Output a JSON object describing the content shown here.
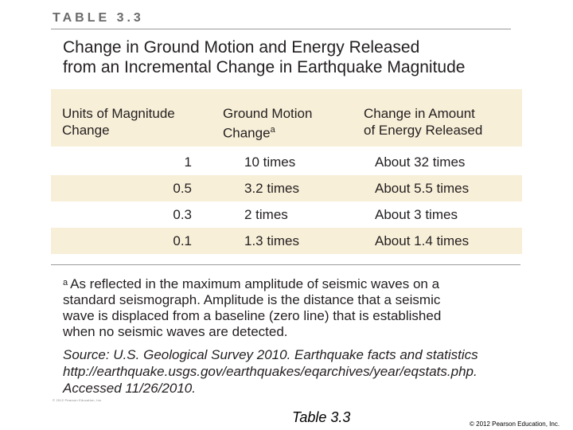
{
  "table_label": "TABLE 3.3",
  "title_line1": "Change in Ground Motion and Energy Released",
  "title_line2": "from an Incremental Change in Earthquake Magnitude",
  "headers": {
    "col1_line1": "Units of Magnitude",
    "col1_line2": "Change",
    "col2_line1": "Ground Motion",
    "col2_line2": "Change",
    "col2_sup": "a",
    "col3_line1": "Change in Amount",
    "col3_line2": "of Energy Released"
  },
  "rows": [
    {
      "magnitude": "1",
      "ground_motion": "10 times",
      "energy": "About 32 times"
    },
    {
      "magnitude": "0.5",
      "ground_motion": "3.2 times",
      "energy": "About 5.5 times"
    },
    {
      "magnitude": "0.3",
      "ground_motion": "2 times",
      "energy": "About 3 times"
    },
    {
      "magnitude": "0.1",
      "ground_motion": "1.3 times",
      "energy": "About 1.4 times"
    }
  ],
  "footnote": {
    "marker": "a",
    "line1": "As reflected in the maximum amplitude of seismic waves on a",
    "line2": "standard seismograph. Amplitude is the distance that a seismic",
    "line3": "wave is displaced from a baseline (zero line) that is established",
    "line4": "when no seismic waves are detected."
  },
  "source": {
    "line1": "Source: U.S. Geological Survey 2010. Earthquake facts and statistics",
    "line2": "http://earthquake.usgs.gov/earthquakes/eqarchives/year/eqstats.php.",
    "line3": "Accessed 11/26/2010."
  },
  "tiny_copyright": "© 2012 Pearson Education, Inc.",
  "caption": "Table 3.3",
  "copyright": "© 2012 Pearson Education, Inc."
}
